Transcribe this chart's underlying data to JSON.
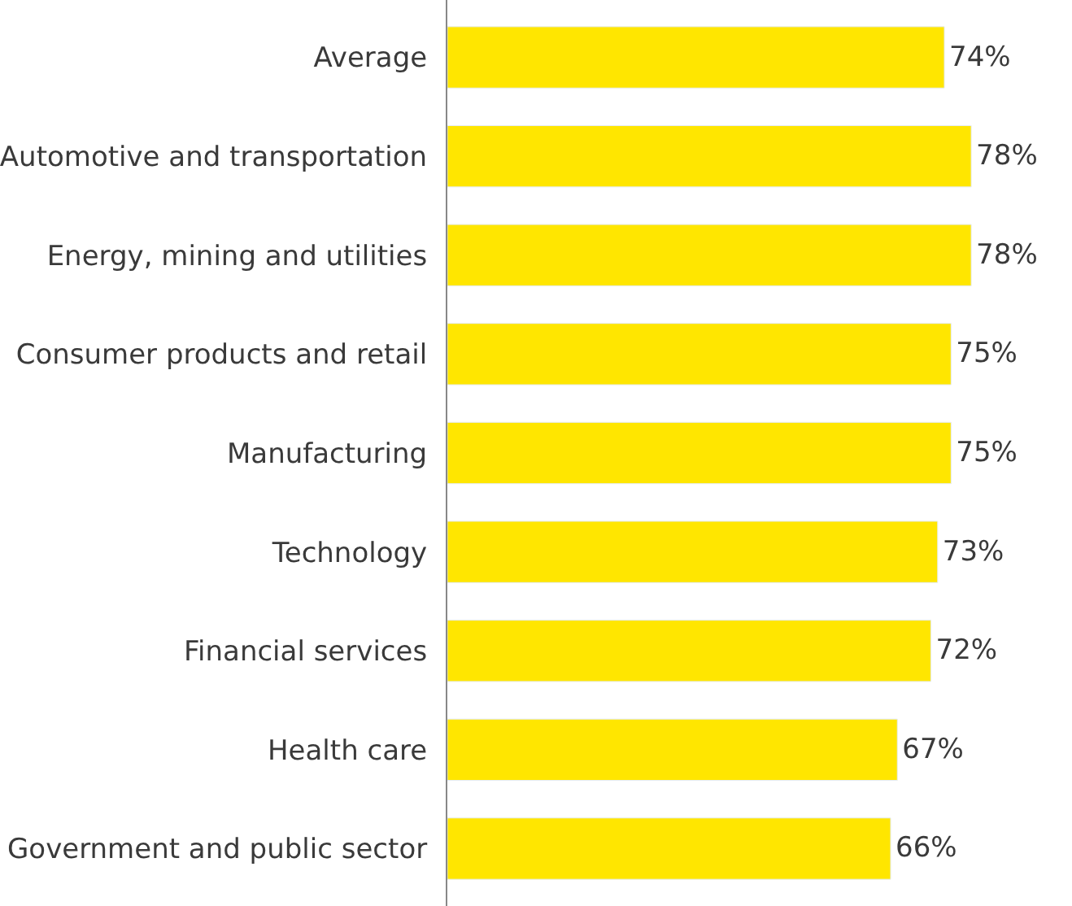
{
  "chart_data": {
    "type": "bar",
    "orientation": "horizontal",
    "categories": [
      "Average",
      "Automotive and transportation",
      "Energy, mining and utilities",
      "Consumer products and retail",
      "Manufacturing",
      "Technology",
      "Financial services",
      "Health care",
      "Government and public sector"
    ],
    "values": [
      74,
      78,
      78,
      75,
      75,
      73,
      72,
      67,
      66
    ],
    "value_labels": [
      "74%",
      "78%",
      "78%",
      "75%",
      "75%",
      "73%",
      "72%",
      "67%",
      "66%"
    ],
    "color": "#ffe600",
    "legend": false,
    "tick_labels": "y"
  }
}
